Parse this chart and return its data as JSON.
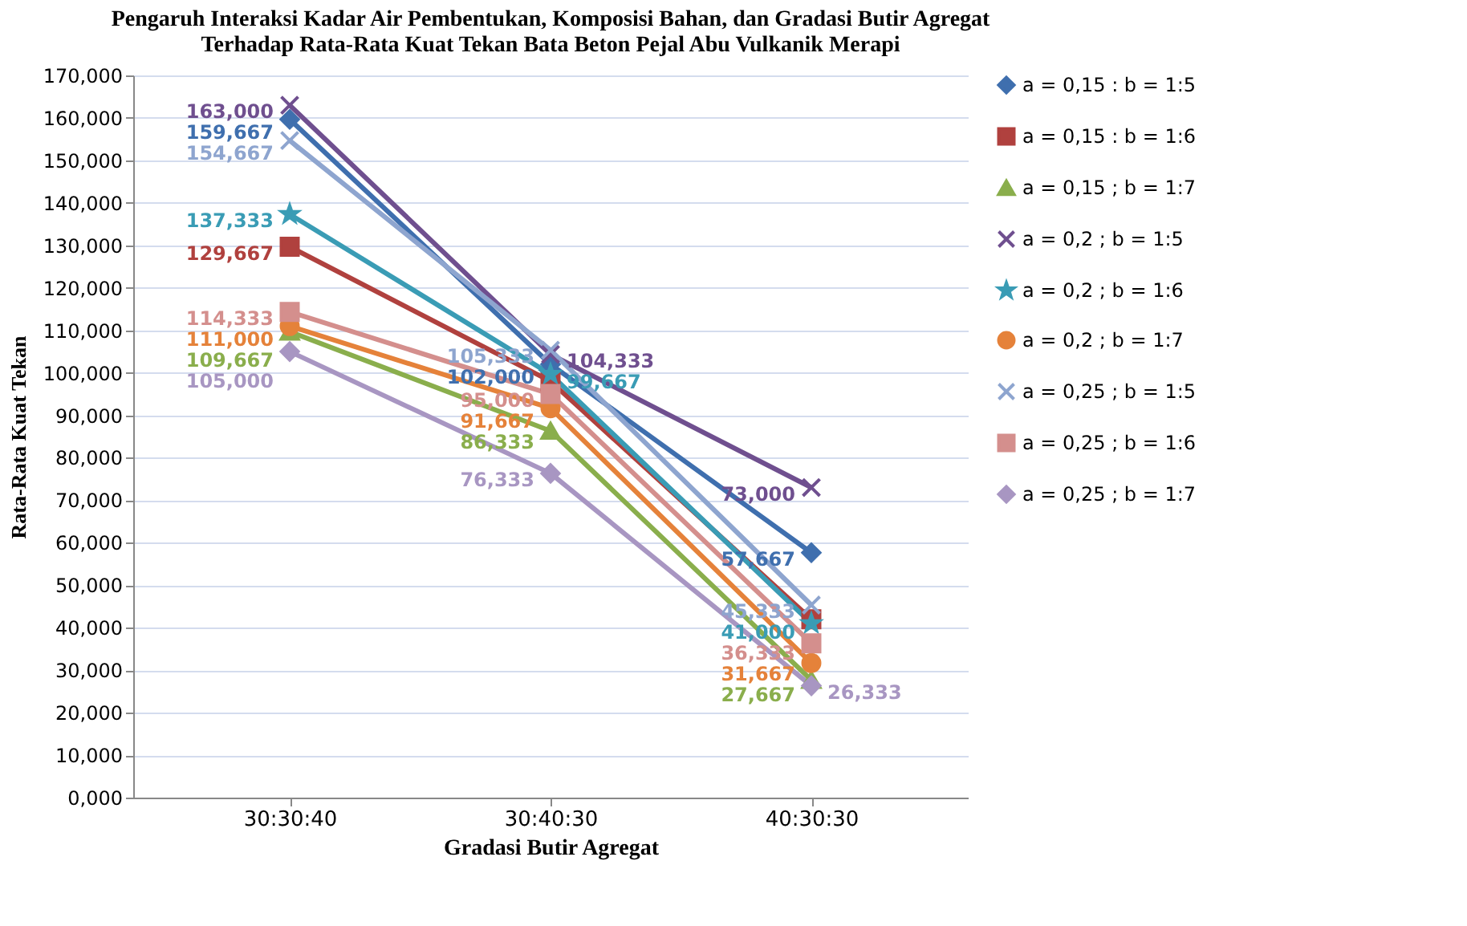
{
  "chart_data": {
    "type": "line",
    "title": [
      "Pengaruh Interaksi Kadar Air Pembentukan, Komposisi Bahan, dan Gradasi Butir Agregat",
      "Terhadap  Rata-Rata Kuat Tekan Bata Beton Pejal Abu Vulkanik Merapi"
    ],
    "xlabel": "Gradasi Butir Agregat",
    "ylabel": "Rata-Rata Kuat Tekan",
    "categories": [
      "30:30:40",
      "30:40:30",
      "40:30:30"
    ],
    "series": [
      {
        "name": "a = 0,15 : b = 1:5",
        "color": "#3f6fae",
        "marker": "diamond",
        "values": [
          159.667,
          102.0,
          57.667
        ],
        "value_labels": [
          "159,667",
          "102,000",
          "57,667"
        ]
      },
      {
        "name": "a = 0,15 : b = 1:6",
        "color": "#b0413e",
        "marker": "square",
        "values": [
          129.667,
          98.0,
          42
        ],
        "value_labels": [
          "129,667",
          null,
          null
        ]
      },
      {
        "name": "a = 0,15 ; b = 1:7",
        "color": "#8aae4c",
        "marker": "triangle",
        "values": [
          109.667,
          86.333,
          27.667
        ],
        "value_labels": [
          "109,667",
          "86,333",
          "27,667"
        ]
      },
      {
        "name": "a = 0,2 ; b = 1:5",
        "color": "#6f4f8f",
        "marker": "cross",
        "values": [
          163.0,
          104.333,
          73.0
        ],
        "value_labels": [
          "163,000",
          "104,333",
          "73,000"
        ]
      },
      {
        "name": "a = 0,2 ; b = 1:6",
        "color": "#3a9cb5",
        "marker": "star",
        "values": [
          137.333,
          99.667,
          41.0
        ],
        "value_labels": [
          "137,333",
          "99,667",
          "41,000"
        ]
      },
      {
        "name": "a = 0,2 ; b = 1:7",
        "color": "#e5823a",
        "marker": "circle",
        "values": [
          111.0,
          91.667,
          31.667
        ],
        "value_labels": [
          "111,000",
          "91,667",
          "31,667"
        ]
      },
      {
        "name": "a = 0,25 ; b = 1:5",
        "color": "#8ea5cf",
        "marker": "cross",
        "values": [
          154.667,
          105.333,
          45.333
        ],
        "value_labels": [
          "154,667",
          "105,333",
          "45,333"
        ]
      },
      {
        "name": "a = 0,25 ; b = 1:6",
        "color": "#d48f8d",
        "marker": "square",
        "values": [
          114.333,
          95.0,
          36.333
        ],
        "value_labels": [
          "114,333",
          "95,000",
          "36,333"
        ]
      },
      {
        "name": "a = 0,25 ; b = 1:7",
        "color": "#a896c2",
        "marker": "diamond",
        "values": [
          105.0,
          76.333,
          26.333
        ],
        "value_labels": [
          "105,000",
          "76,333",
          "26,333"
        ]
      }
    ],
    "ylim": [
      0,
      170
    ],
    "yticks": [
      {
        "value": 0,
        "label": "0,000"
      },
      {
        "value": 10,
        "label": "10,000"
      },
      {
        "value": 20,
        "label": "20,000"
      },
      {
        "value": 30,
        "label": "30,000"
      },
      {
        "value": 40,
        "label": "40,000"
      },
      {
        "value": 50,
        "label": "50,000"
      },
      {
        "value": 60,
        "label": "60,000"
      },
      {
        "value": 70,
        "label": "70,000"
      },
      {
        "value": 80,
        "label": "80,000"
      },
      {
        "value": 90,
        "label": "90,000"
      },
      {
        "value": 100,
        "label": "100,000"
      },
      {
        "value": 110,
        "label": "110,000"
      },
      {
        "value": 120,
        "label": "120,000"
      },
      {
        "value": 130,
        "label": "130,000"
      },
      {
        "value": 140,
        "label": "140,000"
      },
      {
        "value": 150,
        "label": "150,000"
      },
      {
        "value": 160,
        "label": "160,000"
      },
      {
        "value": 170,
        "label": "170,000"
      }
    ],
    "grid": "y",
    "legend": "right",
    "line_style": "solid"
  }
}
